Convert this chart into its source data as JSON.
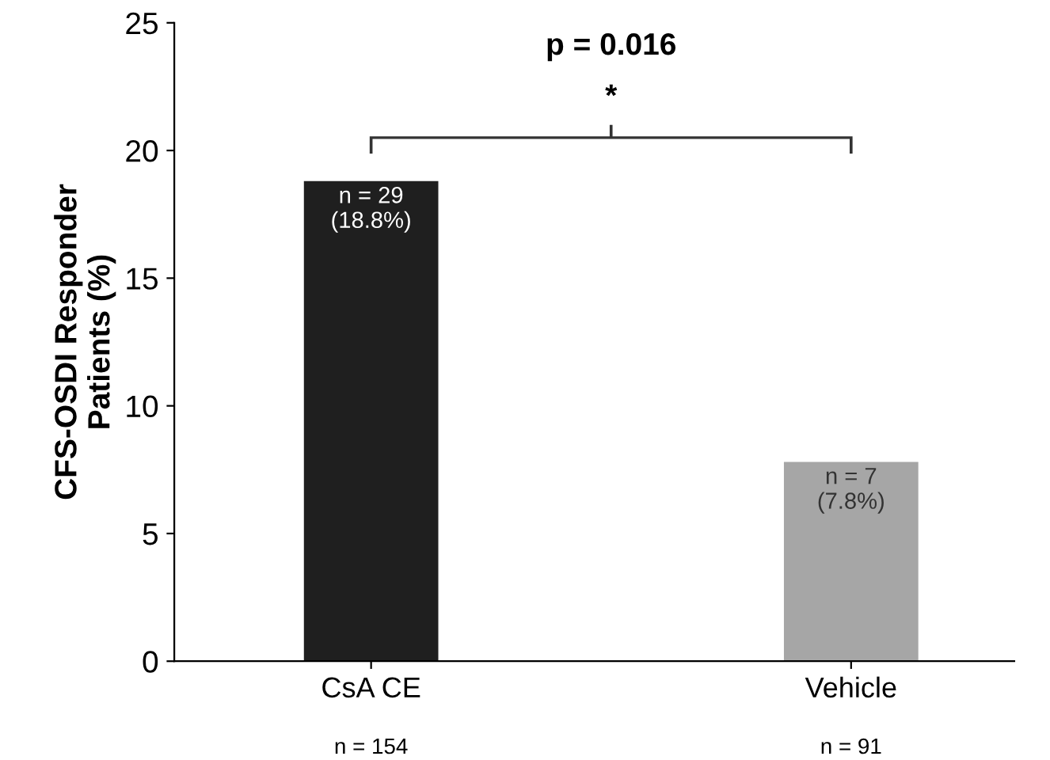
{
  "chart_data": {
    "type": "bar",
    "ylabel": "CFS-OSDI Responder\nPatients (%)",
    "categories": [
      "CsA CE\nn = 154",
      "Vehicle\nn = 91"
    ],
    "values": [
      18.8,
      7.8
    ],
    "colors": [
      "#1f1f1f",
      "#a6a6a6"
    ],
    "value_labels": [
      "n = 29\n(18.8%)",
      "n = 7\n(7.8%)"
    ],
    "ylim": [
      0,
      25
    ],
    "yticks": [
      0,
      5,
      10,
      15,
      20,
      25
    ],
    "annotations": [
      "p = 0.016",
      "*"
    ],
    "grid": false,
    "legend": false
  }
}
